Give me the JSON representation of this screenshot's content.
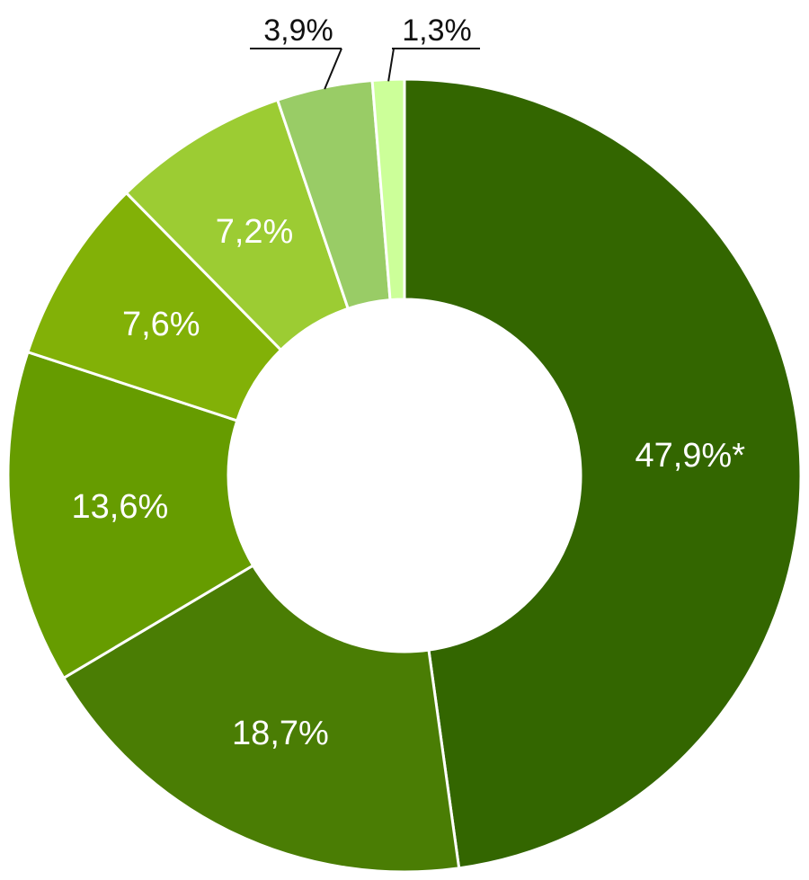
{
  "chart_data": {
    "type": "pie",
    "style": "donut",
    "title": "",
    "slices": [
      {
        "value": 47.9,
        "label": "47,9%*",
        "color": "#336600",
        "label_position": "inside"
      },
      {
        "value": 18.7,
        "label": "18,7%",
        "color": "#4a7d04",
        "label_position": "inside"
      },
      {
        "value": 13.6,
        "label": "13,6%",
        "color": "#669c00",
        "label_position": "inside"
      },
      {
        "value": 7.6,
        "label": "7,6%",
        "color": "#82b107",
        "label_position": "inside"
      },
      {
        "value": 7.2,
        "label": "7,2%",
        "color": "#9ccc33",
        "label_position": "inside"
      },
      {
        "value": 3.9,
        "label": "3,9%",
        "color": "#99cc66",
        "label_position": "outside"
      },
      {
        "value": 1.3,
        "label": "1,3%",
        "color": "#ccff99",
        "label_position": "outside"
      }
    ]
  }
}
